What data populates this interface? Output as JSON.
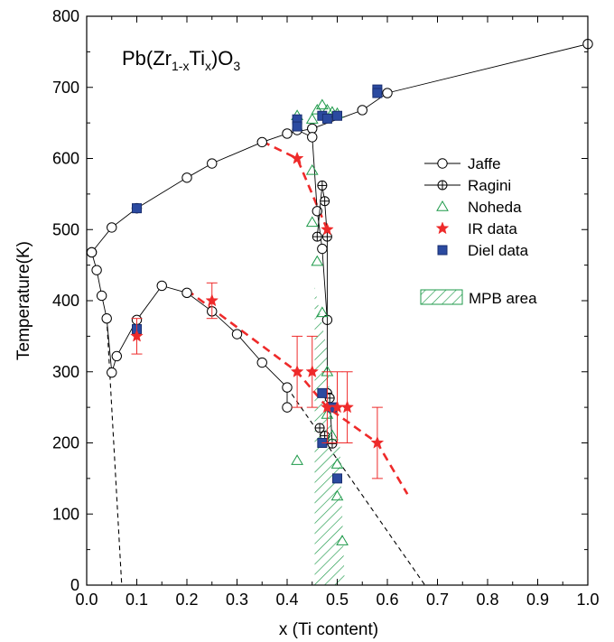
{
  "chart_data": {
    "type": "scatter",
    "title": {
      "base": "Pb(Zr",
      "sub1": "1-x",
      "mid": "Ti",
      "sub2": "x",
      "end": ")O",
      "sub3": "3"
    },
    "xlabel": "x (Ti content)",
    "ylabel": "Temperature(K)",
    "xlim": [
      0,
      1
    ],
    "ylim": [
      0,
      800
    ],
    "x_ticks": [
      "0.0",
      "0.1",
      "0.2",
      "0.3",
      "0.4",
      "0.5",
      "0.6",
      "0.7",
      "0.8",
      "0.9",
      "1.0"
    ],
    "y_ticks": [
      "0",
      "100",
      "200",
      "300",
      "400",
      "500",
      "600",
      "700",
      "800"
    ],
    "legend_position": "right",
    "colors": {
      "red": "#ee2a2a",
      "green": "#1e9a4a",
      "blue": "#2b4aa0"
    },
    "series": [
      {
        "name": "Jaffe",
        "marker": "open-circle-line",
        "lines": [
          [
            [
              0.01,
              468
            ],
            [
              0.05,
              503
            ],
            [
              0.1,
              530
            ],
            [
              0.2,
              573
            ],
            [
              0.25,
              593
            ],
            [
              0.35,
              623
            ],
            [
              0.4,
              635
            ],
            [
              0.45,
              642
            ],
            [
              0.55,
              668
            ],
            [
              0.6,
              692
            ],
            [
              1.0,
              761
            ]
          ],
          [
            [
              0.01,
              468
            ],
            [
              0.02,
              443
            ],
            [
              0.03,
              407
            ],
            [
              0.04,
              375
            ],
            [
              0.05,
              299
            ],
            [
              0.06,
              322
            ],
            [
              0.1,
              373
            ],
            [
              0.15,
              421
            ],
            [
              0.2,
              411
            ],
            [
              0.25,
              385
            ],
            [
              0.3,
              353
            ],
            [
              0.35,
              313
            ],
            [
              0.4,
              278
            ],
            [
              0.4,
              250
            ]
          ],
          [
            [
              0.42,
              640
            ],
            [
              0.45,
              630
            ],
            [
              0.46,
              526
            ],
            [
              0.47,
              473
            ],
            [
              0.48,
              373
            ]
          ]
        ]
      },
      {
        "name": "Ragini",
        "marker": "crossed-circle-line",
        "lines": [
          [
            [
              0.46,
              490
            ],
            [
              0.47,
              562
            ],
            [
              0.475,
              540
            ],
            [
              0.48,
              490
            ],
            [
              0.48,
              270
            ],
            [
              0.485,
              263
            ],
            [
              0.49,
              199
            ]
          ],
          [
            [
              0.465,
              221
            ],
            [
              0.475,
              210
            ],
            [
              0.48,
              205
            ]
          ]
        ],
        "points": [
          [
            0.46,
            490
          ],
          [
            0.47,
            562
          ],
          [
            0.475,
            540
          ],
          [
            0.48,
            490
          ],
          [
            0.48,
            270
          ],
          [
            0.485,
            263
          ],
          [
            0.49,
            199
          ],
          [
            0.465,
            221
          ],
          [
            0.475,
            210
          ]
        ]
      },
      {
        "name": "Noheda",
        "marker": "open-triangle",
        "points": [
          [
            0.42,
            660
          ],
          [
            0.45,
            655
          ],
          [
            0.46,
            668
          ],
          [
            0.47,
            675
          ],
          [
            0.48,
            668
          ],
          [
            0.49,
            665
          ],
          [
            0.5,
            663
          ],
          [
            0.45,
            583
          ],
          [
            0.45,
            510
          ],
          [
            0.46,
            455
          ],
          [
            0.47,
            383
          ],
          [
            0.48,
            300
          ],
          [
            0.48,
            240
          ],
          [
            0.49,
            210
          ],
          [
            0.5,
            170
          ],
          [
            0.5,
            125
          ],
          [
            0.51,
            62
          ],
          [
            0.42,
            175
          ]
        ]
      },
      {
        "name": "IR data",
        "marker": "star",
        "points": [
          {
            "x": 0.1,
            "y": 350,
            "err": 25
          },
          {
            "x": 0.25,
            "y": 400,
            "err": 25
          },
          {
            "x": 0.42,
            "y": 600,
            "err": 0
          },
          {
            "x": 0.48,
            "y": 500,
            "err": 0
          },
          {
            "x": 0.42,
            "y": 300,
            "err": 50
          },
          {
            "x": 0.45,
            "y": 300,
            "err": 50
          },
          {
            "x": 0.48,
            "y": 250,
            "err": 50
          },
          {
            "x": 0.5,
            "y": 250,
            "err": 50
          },
          {
            "x": 0.52,
            "y": 250,
            "err": 50
          },
          {
            "x": 0.58,
            "y": 200,
            "err": 50
          }
        ]
      },
      {
        "name": "Diel data",
        "marker": "filled-square",
        "points": [
          [
            0.1,
            530
          ],
          [
            0.1,
            360
          ],
          [
            0.42,
            655
          ],
          [
            0.42,
            645
          ],
          [
            0.47,
            660
          ],
          [
            0.48,
            656
          ],
          [
            0.5,
            660
          ],
          [
            0.58,
            697
          ],
          [
            0.58,
            692
          ],
          [
            0.47,
            270
          ],
          [
            0.49,
            250
          ],
          [
            0.47,
            200
          ],
          [
            0.5,
            150
          ]
        ]
      },
      {
        "name": "MPB area",
        "marker": "hatched-band",
        "polygon": [
          [
            0.455,
            420
          ],
          [
            0.455,
            0
          ],
          [
            0.515,
            0
          ],
          [
            0.505,
            200
          ],
          [
            0.49,
            200
          ],
          [
            0.48,
            330
          ]
        ]
      }
    ],
    "guides": {
      "red_dashed": [
        [
          [
            0.35,
            624
          ],
          [
            0.42,
            600
          ],
          [
            0.48,
            500
          ]
        ],
        [
          [
            0.2,
            415
          ],
          [
            0.42,
            300
          ],
          [
            0.48,
            250
          ],
          [
            0.58,
            200
          ],
          [
            0.64,
            128
          ]
        ]
      ],
      "black_dashed": [
        [
          [
            0.04,
            375
          ],
          [
            0.07,
            0
          ]
        ],
        [
          [
            0.4,
            278
          ],
          [
            0.675,
            0
          ]
        ]
      ]
    }
  }
}
